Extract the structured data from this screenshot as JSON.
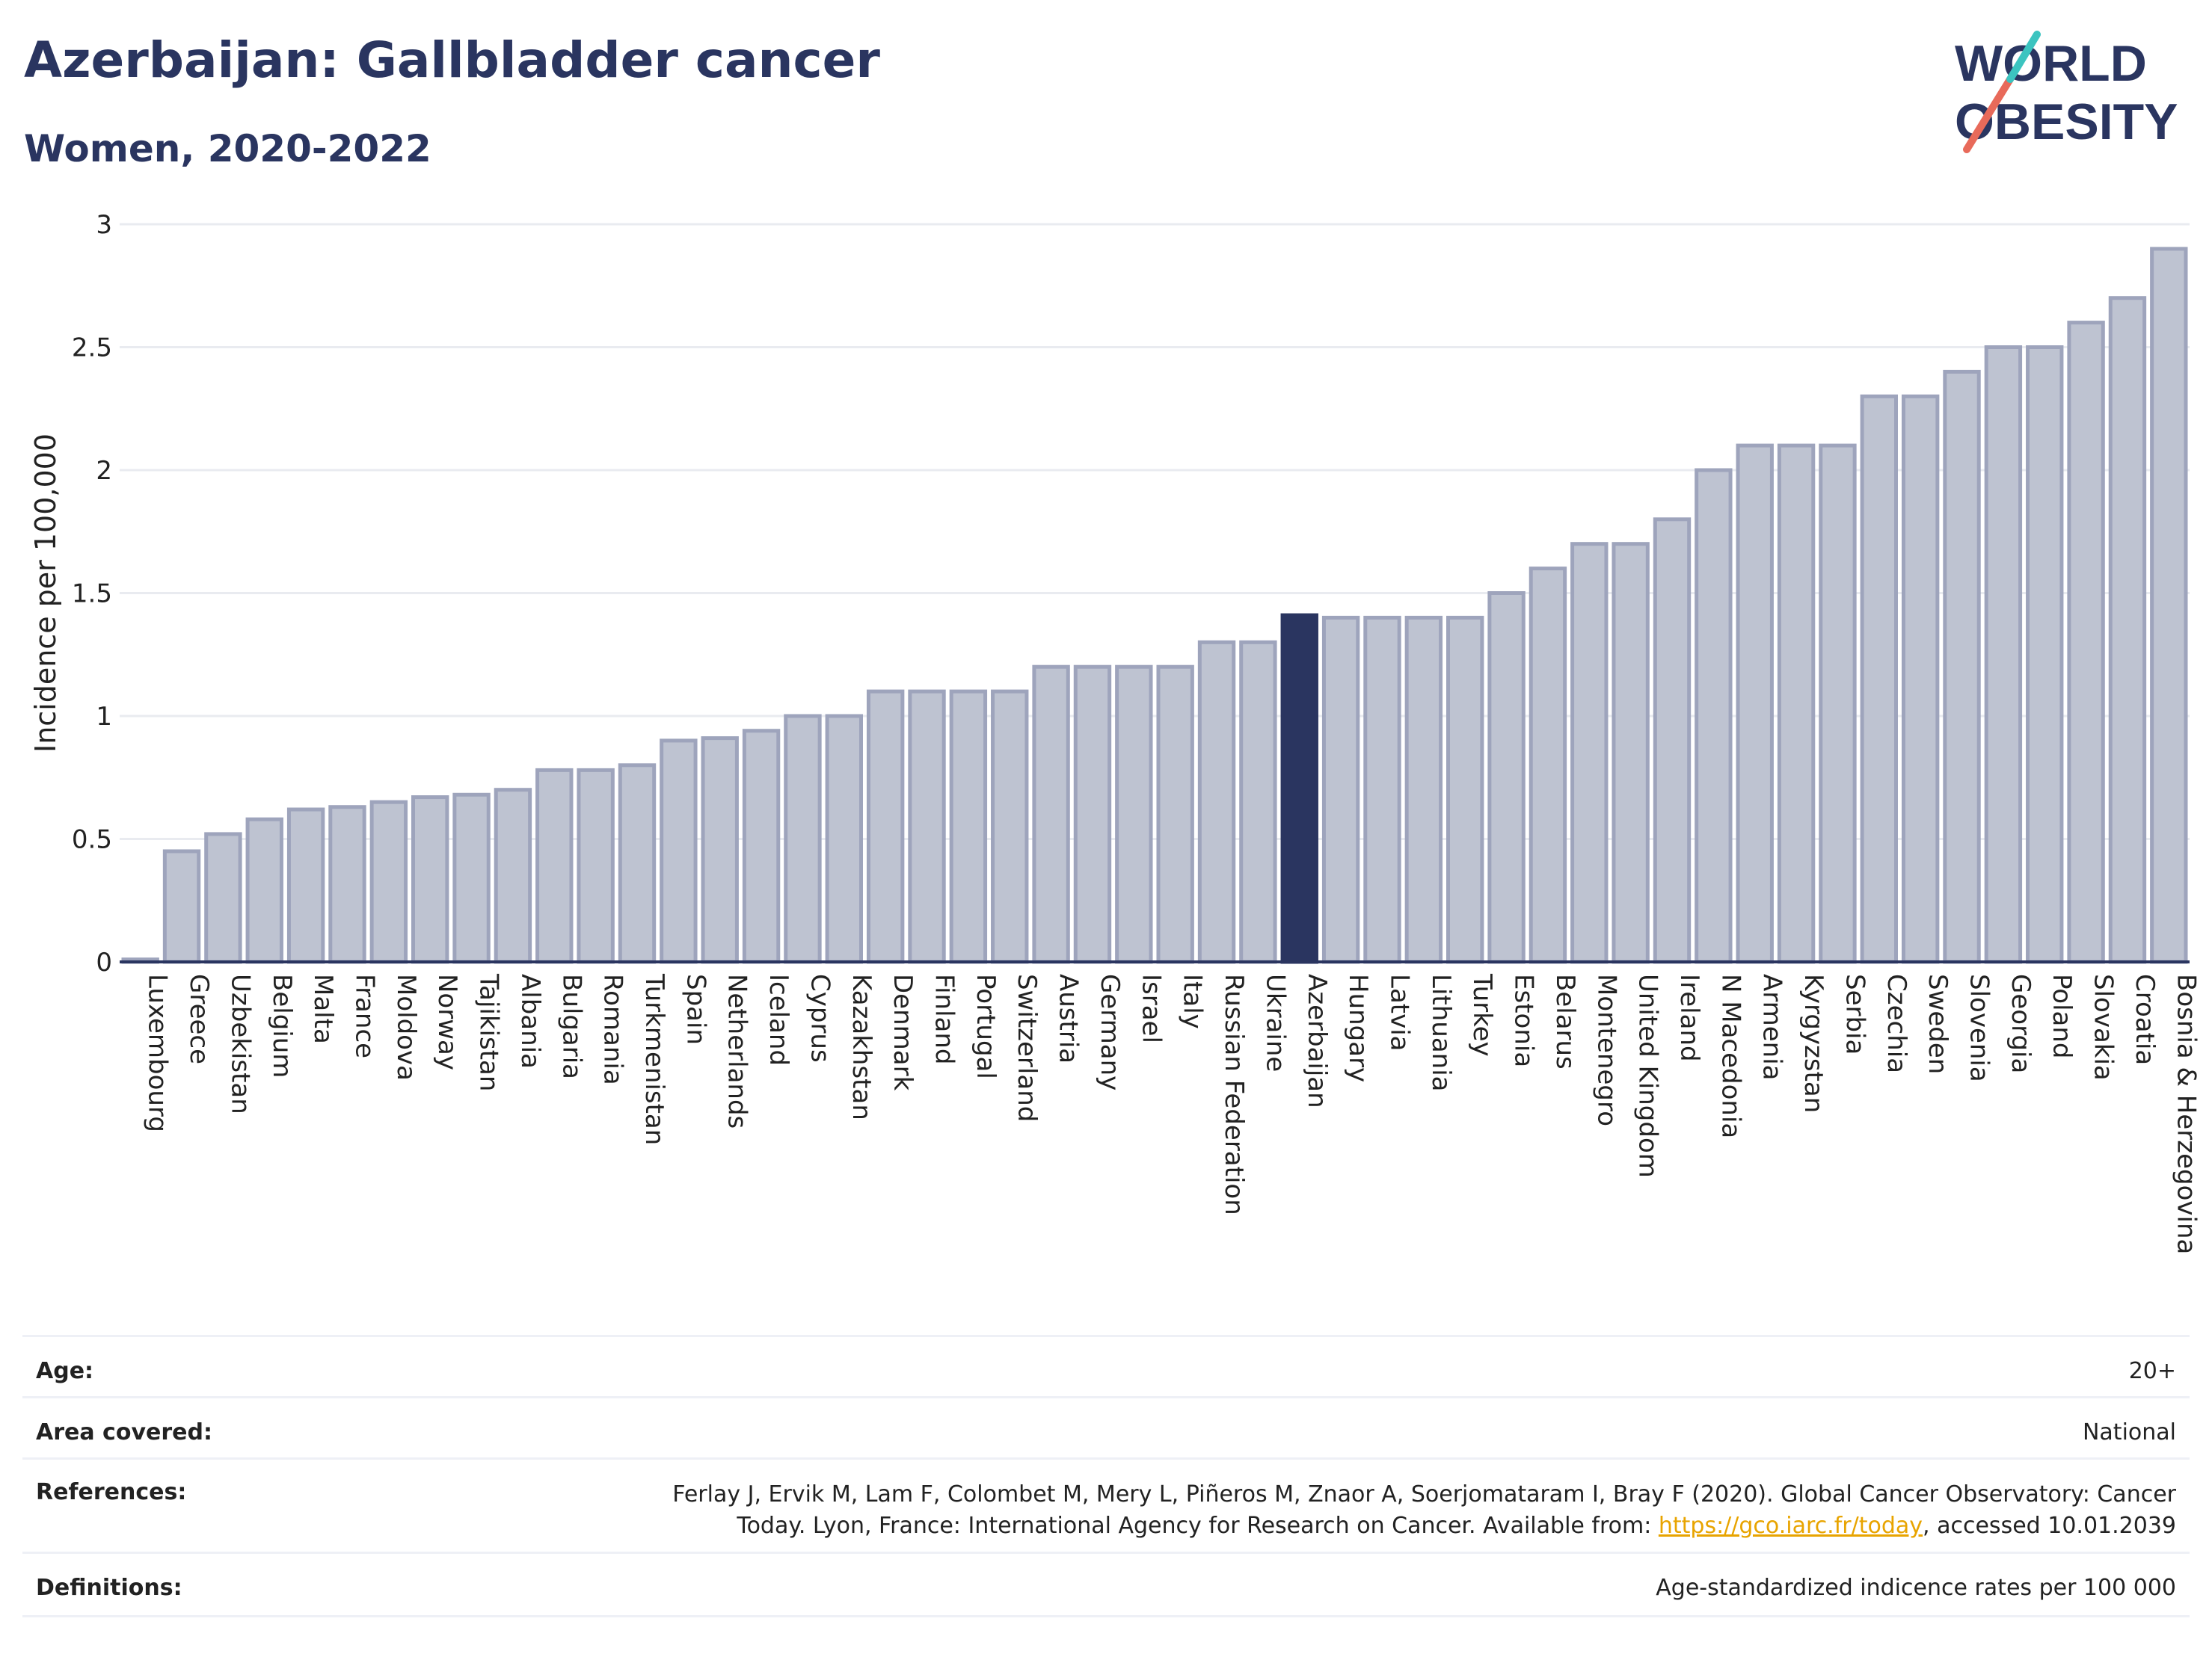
{
  "header": {
    "title": "Azerbaijan: Gallbladder cancer",
    "subtitle": "Women, 2020-2022",
    "logo_line1": "WORLD",
    "logo_line2": "OBESITY"
  },
  "chart_data": {
    "type": "bar",
    "title": "Azerbaijan: Gallbladder cancer",
    "subtitle": "Women, 2020-2022",
    "ylabel": "Incidence per 100,000",
    "xlabel": "",
    "ylim": [
      0,
      3
    ],
    "yticks": [
      0,
      0.5,
      1,
      1.5,
      2,
      2.5,
      3
    ],
    "ytick_labels": [
      "0",
      "0.5",
      "1",
      "1.5",
      "2",
      "2.5",
      "3"
    ],
    "grid": "horizontal",
    "highlight": "Azerbaijan",
    "categories": [
      "Luxembourg",
      "Greece",
      "Uzbekistan",
      "Belgium",
      "Malta",
      "France",
      "Moldova",
      "Norway",
      "Tajikistan",
      "Albania",
      "Bulgaria",
      "Romania",
      "Turkmenistan",
      "Spain",
      "Netherlands",
      "Iceland",
      "Cyprus",
      "Kazakhstan",
      "Denmark",
      "Finland",
      "Portugal",
      "Switzerland",
      "Austria",
      "Germany",
      "Israel",
      "Italy",
      "Russian Federation",
      "Ukraine",
      "Azerbaijan",
      "Hungary",
      "Latvia",
      "Lithuania",
      "Turkey",
      "Estonia",
      "Belarus",
      "Montenegro",
      "United Kingdom",
      "Ireland",
      "N Macedonia",
      "Armenia",
      "Kyrgyzstan",
      "Serbia",
      "Czechia",
      "Sweden",
      "Slovenia",
      "Georgia",
      "Poland",
      "Slovakia",
      "Croatia",
      "Bosnia & Herzegovina"
    ],
    "values": [
      0.01,
      0.45,
      0.52,
      0.58,
      0.62,
      0.63,
      0.65,
      0.67,
      0.68,
      0.7,
      0.78,
      0.78,
      0.8,
      0.9,
      0.91,
      0.94,
      1.0,
      1.0,
      1.1,
      1.1,
      1.1,
      1.1,
      1.2,
      1.2,
      1.2,
      1.2,
      1.3,
      1.3,
      1.41,
      1.4,
      1.4,
      1.4,
      1.4,
      1.5,
      1.6,
      1.7,
      1.7,
      1.8,
      2.0,
      2.1,
      2.1,
      2.1,
      2.3,
      2.3,
      2.4,
      2.5,
      2.5,
      2.6,
      2.7,
      2.9
    ],
    "colors": {
      "bar": "#bec3d1",
      "bar_border": "#9ea4bc",
      "highlight": "#2a3560",
      "grid": "#e9ebf0",
      "axis": "#2a3560"
    }
  },
  "meta": {
    "age_label": "Age:",
    "age_value": "20+",
    "area_label": "Area covered:",
    "area_value": "National",
    "references_label": "References:",
    "references_line1": "Ferlay J, Ervik M, Lam F, Colombet M, Mery L, Piñeros M, Znaor A, Soerjomataram I, Bray F (2020). Global Cancer Observatory: Cancer",
    "references_line2_pre": "Today. Lyon, France: International Agency for Research on Cancer. Available from: ",
    "references_link": "https://gco.iarc.fr/today",
    "references_line2_post": ", accessed 10.01.2039",
    "definitions_label": "Definitions:",
    "definitions_value": "Age-standardized indicence rates per 100 000"
  }
}
